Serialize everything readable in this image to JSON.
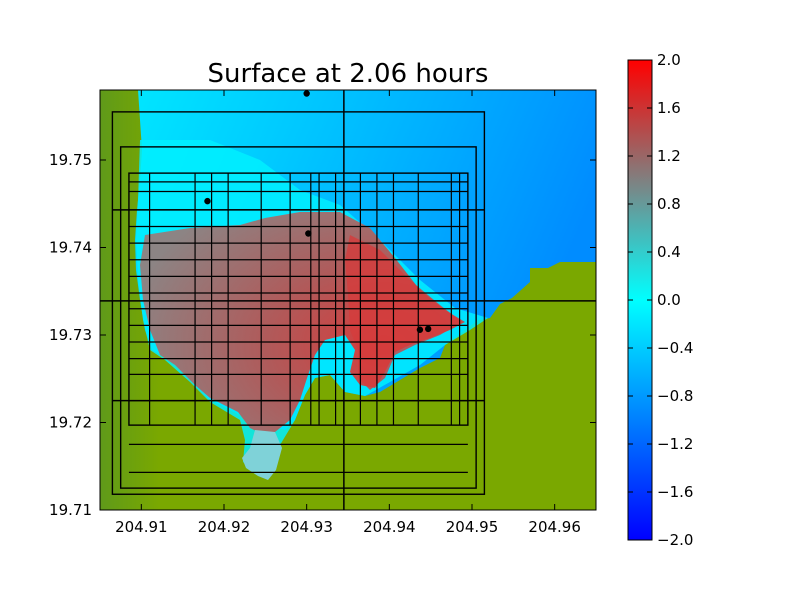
{
  "chart_data": {
    "type": "heatmap",
    "title": "Surface at 2.06 hours",
    "xlabel": "",
    "ylabel": "",
    "xlim": [
      204.905,
      204.965
    ],
    "ylim": [
      19.71,
      19.758
    ],
    "x_ticks": [
      204.91,
      204.92,
      204.93,
      204.94,
      204.95,
      204.96
    ],
    "x_tick_labels": [
      "204.91",
      "204.92",
      "204.93",
      "204.94",
      "204.95",
      "204.96"
    ],
    "y_ticks": [
      19.71,
      19.72,
      19.73,
      19.74,
      19.75
    ],
    "y_tick_labels": [
      "19.71",
      "19.72",
      "19.73",
      "19.74",
      "19.75"
    ],
    "colorbar": {
      "range": [
        -2.0,
        2.0
      ],
      "ticks": [
        2.0,
        1.6,
        1.2,
        0.8,
        0.4,
        0.0,
        -0.4,
        -0.8,
        -1.2,
        -1.6,
        -2.0
      ],
      "tick_labels": [
        "2.0",
        "1.6",
        "1.2",
        "0.8",
        "0.4",
        "0.0",
        "−0.4",
        "−0.8",
        "−1.2",
        "−1.6",
        "−2.0"
      ],
      "colors": [
        "#0000ff",
        "#00ffff",
        "#808080",
        "#ff0000"
      ]
    },
    "land_color": "#7aa800",
    "grid_outlines": [
      {
        "level": 1,
        "x": [
          204.9065,
          204.9515
        ],
        "y": [
          19.7118,
          19.7555
        ]
      },
      {
        "level": 2,
        "x": [
          204.9075,
          204.9505
        ],
        "y": [
          19.7125,
          19.7515
        ]
      },
      {
        "level": 3,
        "x": [
          204.9085,
          204.9495
        ],
        "y": [
          19.7197,
          19.7485
        ]
      }
    ],
    "grid_lines_x": [
      204.911,
      204.9165,
      204.9185,
      204.9205,
      204.9245,
      204.928,
      204.9305,
      204.9315,
      204.9335,
      204.9365,
      204.9385,
      204.9405,
      204.9435,
      204.9475,
      204.9485
    ],
    "grid_lines_y": [
      19.7143,
      19.7175,
      19.7225,
      19.7255,
      19.7273,
      19.7292,
      19.7311,
      19.733,
      19.7348,
      19.7367,
      19.7386,
      19.7405,
      19.7424,
      19.7443,
      19.7464,
      19.7475
    ],
    "grid_lines_bold_x": [
      204.9345
    ],
    "grid_lines_bold_y": [
      19.7339,
      19.7225,
      19.7443
    ],
    "gauges": [
      {
        "x": 204.93,
        "y": 19.7576
      },
      {
        "x": 204.918,
        "y": 19.7453
      },
      {
        "x": 204.9302,
        "y": 19.7416
      },
      {
        "x": 204.9437,
        "y": 19.7306
      },
      {
        "x": 204.9447,
        "y": 19.7307
      }
    ]
  }
}
